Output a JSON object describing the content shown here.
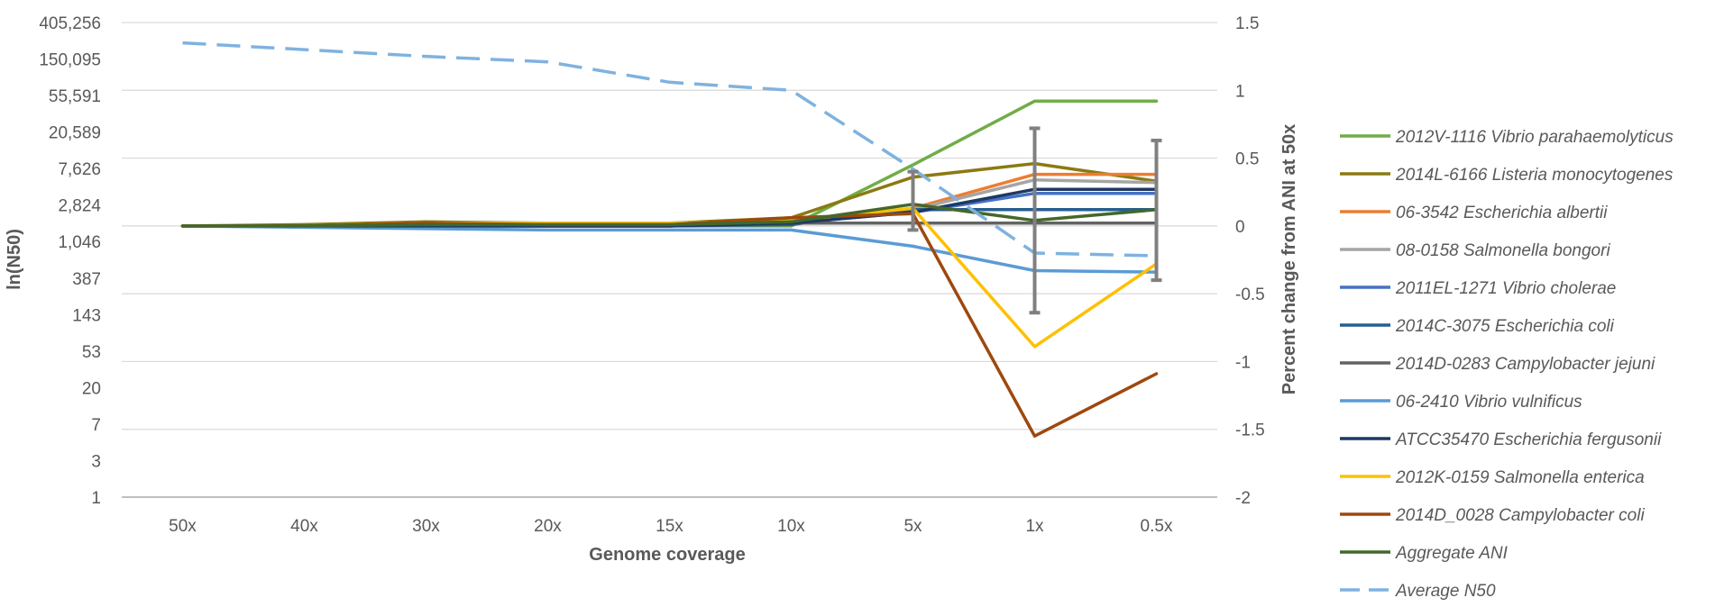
{
  "chart_data": {
    "type": "line",
    "xlabel": "Genome coverage",
    "ylabel": "ln(N50)",
    "y2label": "Percent change from ANI at 50x",
    "categories": [
      "50x",
      "40x",
      "30x",
      "20x",
      "15x",
      "10x",
      "5x",
      "1x",
      "0.5x"
    ],
    "y_left_ticks": [
      "1",
      "3",
      "7",
      "20",
      "53",
      "143",
      "387",
      "1,046",
      "2,824",
      "7,626",
      "20,589",
      "55,591",
      "150,095",
      "405,256"
    ],
    "y_right_ticks": [
      "1.5",
      "1",
      "0.5",
      "0",
      "-0.5",
      "-1",
      "-1.5",
      "-2"
    ],
    "ylim_right": [
      -2,
      1.5
    ],
    "grid": true,
    "legend_position": "right",
    "series": [
      {
        "name": "2012V-1116 Vibrio parahaemolyticus",
        "color": "#70AD47",
        "italic": true,
        "values": [
          0,
          0,
          0,
          0,
          0,
          0,
          0.45,
          0.92,
          0.92
        ]
      },
      {
        "name": "2014L-6166 Listeria monocytogenes",
        "color": "#8B7A12",
        "italic": true,
        "values": [
          0,
          0.01,
          0.03,
          0.02,
          0.02,
          0.06,
          0.36,
          0.46,
          0.33
        ]
      },
      {
        "name": "06-3542 Escherichia albertii",
        "color": "#ED7D31",
        "italic": true,
        "values": [
          0,
          0,
          0.02,
          0.01,
          0.01,
          0.03,
          0.13,
          0.38,
          0.38
        ]
      },
      {
        "name": "08-0158 Salmonella bongori",
        "color": "#A5A5A5",
        "italic": true,
        "values": [
          0,
          0,
          0.01,
          0,
          0,
          0.02,
          0.12,
          0.34,
          0.32
        ]
      },
      {
        "name": "2011EL-1271 Vibrio cholerae",
        "color": "#4472C4",
        "italic": true,
        "values": [
          0,
          0,
          0,
          0,
          0,
          0.02,
          0.1,
          0.24,
          0.24
        ]
      },
      {
        "name": "2014C-3075 Escherichia coli",
        "color": "#255E91",
        "italic": true,
        "values": [
          0,
          0,
          0,
          0,
          0,
          0.01,
          0.12,
          0.12,
          0.12
        ]
      },
      {
        "name": "2014D-0283 Campylobacter jejuni",
        "color": "#636363",
        "italic": true,
        "values": [
          0,
          0,
          0,
          0,
          0,
          0.02,
          0.02,
          0.02,
          0.02
        ]
      },
      {
        "name": "06-2410 Vibrio vulnificus",
        "color": "#5B9BD5",
        "italic": true,
        "values": [
          0,
          -0.01,
          -0.02,
          -0.03,
          -0.03,
          -0.03,
          -0.15,
          -0.33,
          -0.34
        ]
      },
      {
        "name": "ATCC35470 Escherichia fergusonii",
        "color": "#1F3864",
        "italic": true,
        "values": [
          0,
          0,
          0,
          0,
          0,
          0.02,
          0.1,
          0.27,
          0.27
        ]
      },
      {
        "name": "2012K-0159 Salmonella enterica",
        "color": "#FFC000",
        "italic": true,
        "values": [
          0,
          0,
          0.02,
          0.02,
          0.02,
          0.04,
          0.13,
          -0.89,
          -0.28
        ]
      },
      {
        "name": "2014D_0028 Campylobacter coli",
        "color": "#9E480E",
        "italic": true,
        "values": [
          0,
          0,
          0.02,
          0.01,
          0.01,
          0.06,
          0.09,
          -1.55,
          -1.09
        ]
      },
      {
        "name": "Aggregate ANI",
        "color": "#43682B",
        "italic": false,
        "values": [
          0,
          0,
          0.01,
          0.01,
          0.01,
          0.03,
          0.16,
          0.04,
          0.12
        ]
      },
      {
        "name": "Average N50",
        "color": "#7FB2E0",
        "italic": false,
        "dashed": true,
        "values": [
          1.35,
          1.3,
          1.25,
          1.21,
          1.06,
          1.0,
          0.42,
          -0.2,
          -0.22
        ]
      }
    ],
    "error_bars": [
      {
        "category": "5x",
        "low": -0.03,
        "high": 0.4
      },
      {
        "category": "1x",
        "low": -0.64,
        "high": 0.72
      },
      {
        "category": "0.5x",
        "low": -0.4,
        "high": 0.63
      }
    ],
    "error_bar_color": "#808080"
  }
}
